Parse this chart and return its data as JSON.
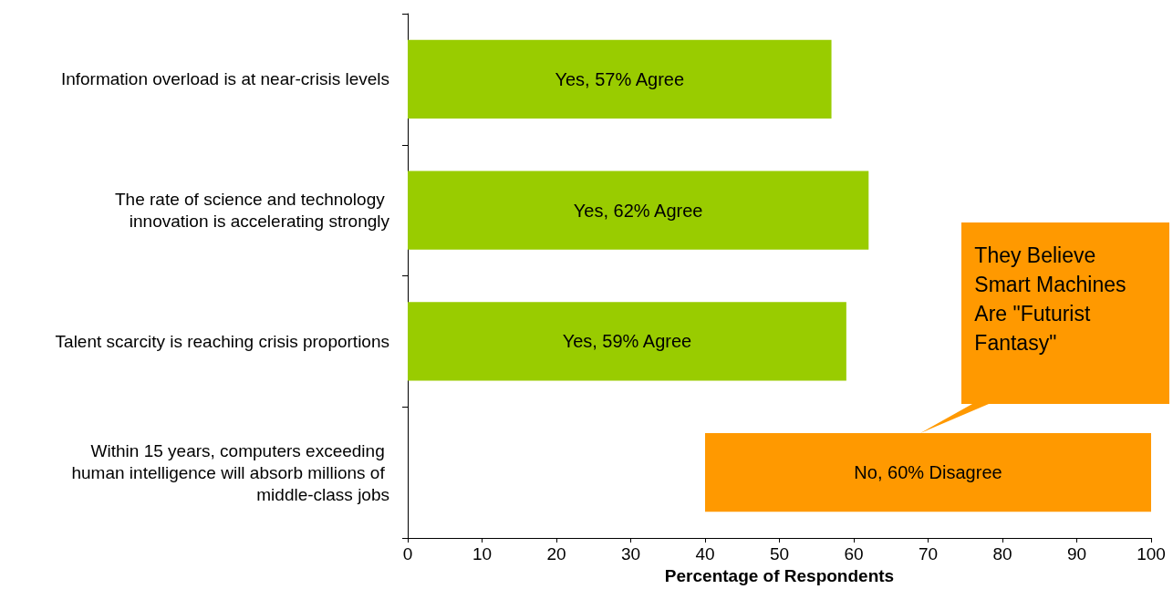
{
  "chart_data": {
    "type": "bar",
    "orientation": "horizontal",
    "xlabel": "Percentage of Respondents",
    "categories": [
      "Information overload is at near-crisis levels",
      "The rate of science and technology innovation is accelerating strongly",
      "Talent scarcity is reaching crisis proportions",
      "Within 15 years, computers exceeding human intelligence will absorb millions of middle-class jobs"
    ],
    "values": [
      57,
      62,
      59,
      60
    ],
    "base": [
      0,
      0,
      0,
      40
    ],
    "colors": [
      "#99cc00",
      "#99cc00",
      "#99cc00",
      "#ff9900"
    ],
    "value_labels": [
      "Yes, 57% Agree",
      "Yes, 62% Agree",
      "Yes, 59% Agree",
      "No, 60% Disagree"
    ],
    "xlim": [
      0,
      100
    ],
    "xticks": [
      0,
      10,
      20,
      30,
      40,
      50,
      60,
      70,
      80,
      90,
      100
    ],
    "grid": false,
    "annotations": [
      "They Believe Smart Machines Are \"Futurist Fantasy\""
    ]
  }
}
